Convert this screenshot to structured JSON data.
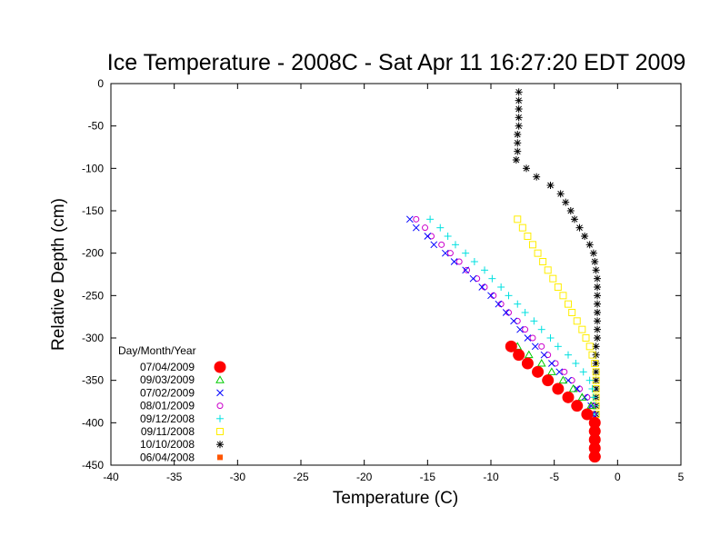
{
  "chart_data": {
    "type": "scatter",
    "title": "Ice Temperature - 2008C - Sat Apr 11 16:27:20 EDT 2009",
    "xlabel": "Temperature (C)",
    "ylabel": "Relative Depth (cm)",
    "xlim": [
      -40,
      5
    ],
    "ylim": [
      -450,
      0
    ],
    "xticks": [
      "-40",
      "-35",
      "-30",
      "-25",
      "-20",
      "-15",
      "-10",
      "-5",
      "0",
      "5"
    ],
    "yticks": [
      "0",
      "-50",
      "-100",
      "-150",
      "-200",
      "-250",
      "-300",
      "-350",
      "-400",
      "-450"
    ],
    "grid": false,
    "legend_title": "Day/Month/Year",
    "legend_position": "bottom-left",
    "series": [
      {
        "name": "07/04/2009",
        "marker": "filled-circle",
        "color": "#ff0000",
        "x": [
          -8.4,
          -7.8,
          -7.1,
          -6.3,
          -5.5,
          -4.7,
          -3.9,
          -3.2,
          -2.4,
          -1.8,
          -1.8,
          -1.8,
          -1.8,
          -1.8,
          -1.8
        ],
        "y": [
          -310,
          -320,
          -330,
          -340,
          -350,
          -360,
          -370,
          -380,
          -390,
          -400,
          -410,
          -420,
          -430,
          -440,
          -440
        ]
      },
      {
        "name": "09/03/2009",
        "marker": "triangle",
        "color": "#00cc00",
        "x": [
          -7.9,
          -7.0,
          -6.0,
          -5.2,
          -4.3,
          -3.5,
          -2.8,
          -2.1,
          -1.8,
          -1.8,
          -1.8,
          -1.8,
          -1.8
        ],
        "y": [
          -310,
          -320,
          -330,
          -340,
          -350,
          -360,
          -370,
          -380,
          -400,
          -410,
          -420,
          -430,
          -440
        ]
      },
      {
        "name": "07/02/2009",
        "marker": "x",
        "color": "#0000ff",
        "x": [
          -16.4,
          -15.9,
          -15.0,
          -14.5,
          -13.6,
          -12.9,
          -12.0,
          -11.4,
          -10.7,
          -10.0,
          -9.4,
          -8.8,
          -8.2,
          -7.7,
          -7.1,
          -6.5,
          -5.8,
          -5.2,
          -4.6,
          -3.9,
          -3.2,
          -2.6,
          -2.1,
          -2.0,
          -1.9,
          -1.8,
          -1.8,
          -1.8,
          -1.8,
          -1.8
        ],
        "y": [
          -160,
          -170,
          -180,
          -190,
          -200,
          -210,
          -220,
          -230,
          -240,
          -250,
          -260,
          -270,
          -280,
          -290,
          -300,
          -310,
          -320,
          -330,
          -340,
          -350,
          -360,
          -370,
          -380,
          -390,
          -400,
          -410,
          -420,
          -430,
          -440,
          -440
        ]
      },
      {
        "name": "08/01/2009",
        "marker": "open-circle",
        "color": "#cc00cc",
        "x": [
          -15.9,
          -15.2,
          -14.7,
          -13.9,
          -13.2,
          -12.5,
          -11.9,
          -11.1,
          -10.5,
          -9.8,
          -9.2,
          -8.6,
          -7.9,
          -7.3,
          -6.7,
          -6.0,
          -5.5,
          -4.9,
          -4.2,
          -3.6,
          -3.0,
          -2.4,
          -2.0,
          -1.9,
          -1.8,
          -1.8,
          -1.8,
          -1.8,
          -1.8
        ],
        "y": [
          -160,
          -170,
          -180,
          -190,
          -200,
          -210,
          -220,
          -230,
          -240,
          -250,
          -260,
          -270,
          -280,
          -290,
          -300,
          -310,
          -320,
          -330,
          -340,
          -350,
          -360,
          -370,
          -380,
          -390,
          -400,
          -410,
          -420,
          -430,
          -440
        ]
      },
      {
        "name": "09/12/2008",
        "marker": "plus",
        "color": "#00e0e0",
        "x": [
          -14.8,
          -14.0,
          -13.4,
          -12.8,
          -12.0,
          -11.3,
          -10.5,
          -9.9,
          -9.2,
          -8.6,
          -7.9,
          -7.3,
          -6.6,
          -6.0,
          -5.3,
          -4.7,
          -3.9,
          -3.3,
          -2.7,
          -2.2,
          -2.0,
          -1.9,
          -1.8,
          -1.8,
          -1.8,
          -1.8,
          -1.8,
          -1.8,
          -1.8
        ],
        "y": [
          -160,
          -170,
          -180,
          -190,
          -200,
          -210,
          -220,
          -230,
          -240,
          -250,
          -260,
          -270,
          -280,
          -290,
          -300,
          -310,
          -320,
          -330,
          -340,
          -350,
          -360,
          -370,
          -380,
          -390,
          -400,
          -410,
          -420,
          -430,
          -440
        ]
      },
      {
        "name": "09/11/2008",
        "marker": "open-square",
        "color": "#ffee00",
        "x": [
          -7.9,
          -7.5,
          -7.1,
          -6.7,
          -6.3,
          -5.9,
          -5.5,
          -5.1,
          -4.7,
          -4.3,
          -3.9,
          -3.6,
          -3.2,
          -2.8,
          -2.5,
          -2.2,
          -2.0,
          -1.8,
          -1.7,
          -1.7,
          -1.7,
          -1.7,
          -1.7,
          -1.7,
          -1.7,
          -1.7,
          -1.7,
          -1.7,
          -1.7
        ],
        "y": [
          -160,
          -170,
          -180,
          -190,
          -200,
          -210,
          -220,
          -230,
          -240,
          -250,
          -260,
          -270,
          -280,
          -290,
          -300,
          -310,
          -320,
          -330,
          -340,
          -350,
          -360,
          -370,
          -380,
          -390,
          -400,
          -410,
          -420,
          -430,
          -440
        ]
      },
      {
        "name": "10/10/2008",
        "marker": "star",
        "color": "#000000",
        "x": [
          -7.8,
          -7.8,
          -7.8,
          -7.8,
          -7.8,
          -7.9,
          -7.9,
          -7.9,
          -8.0,
          -7.2,
          -6.4,
          -5.3,
          -4.5,
          -4.1,
          -3.7,
          -3.4,
          -3.0,
          -2.6,
          -2.2,
          -1.9,
          -1.8,
          -1.7,
          -1.6,
          -1.6,
          -1.6,
          -1.6,
          -1.6,
          -1.6,
          -1.6,
          -1.6,
          -1.7,
          -1.7,
          -1.7,
          -1.7,
          -1.7,
          -1.7,
          -1.7,
          -1.7,
          -1.7,
          -1.7,
          -1.7,
          -1.7,
          -1.7,
          -1.7
        ],
        "y": [
          -10,
          -20,
          -30,
          -40,
          -50,
          -60,
          -70,
          -80,
          -90,
          -100,
          -110,
          -120,
          -130,
          -140,
          -150,
          -160,
          -170,
          -180,
          -190,
          -200,
          -210,
          -220,
          -230,
          -240,
          -250,
          -260,
          -270,
          -280,
          -290,
          -300,
          -310,
          -320,
          -330,
          -340,
          -350,
          -360,
          -370,
          -380,
          -390,
          -400,
          -410,
          -420,
          -430,
          -440
        ]
      },
      {
        "name": "06/04/2008",
        "marker": "filled-square",
        "color": "#ff5500",
        "x": [],
        "y": []
      }
    ]
  }
}
